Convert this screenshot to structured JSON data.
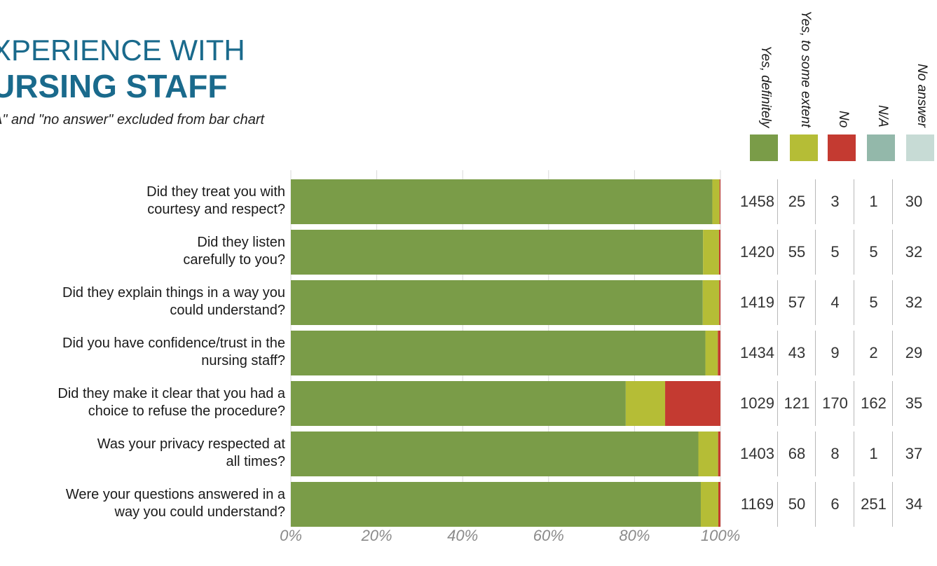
{
  "title_line1": "XPERIENCE WITH",
  "title_line2": "URSING STAFF",
  "subtitle": "A\" and \"no answer\" excluded from bar chart",
  "colors": {
    "yes_definitely": "#7a9c48",
    "yes_some": "#b5bd36",
    "no": "#c43a31",
    "na": "#93b8aa",
    "no_answer": "#c7dbd5",
    "title": "#1a6a8c"
  },
  "legend": [
    {
      "label": "Yes, definitely",
      "color": "#7a9c48"
    },
    {
      "label": "Yes, to some extent",
      "color": "#b5bd36"
    },
    {
      "label": "No",
      "color": "#c43a31"
    },
    {
      "label": "N/A",
      "color": "#93b8aa"
    },
    {
      "label": "No answer",
      "color": "#c7dbd5"
    }
  ],
  "chart_data": {
    "type": "bar",
    "orientation": "horizontal",
    "stacked": "percent",
    "categories": [
      "Did they treat you with courtesy and respect?",
      "Did they listen carefully to you?",
      "Did they explain things in a way you could understand?",
      "Did you have confidence/trust in the nursing staff?",
      "Did they make it clear that you had a choice to refuse the procedure?",
      "Was your privacy respected at all times?",
      "Were your questions answered in a way you could understand?"
    ],
    "category_lines": [
      [
        "Did they treat you with",
        "courtesy and respect?"
      ],
      [
        "Did they listen",
        "carefully to you?"
      ],
      [
        "Did they explain things in a way you",
        "could understand?"
      ],
      [
        "Did you have confidence/trust in the",
        "nursing staff?"
      ],
      [
        "Did they make it clear that you had a",
        "choice to refuse the procedure?"
      ],
      [
        "Was your privacy respected at",
        "all times?"
      ],
      [
        "Were your questions answered in a",
        "way you could understand?"
      ]
    ],
    "series": [
      {
        "name": "Yes, definitely",
        "values": [
          1458,
          1420,
          1419,
          1434,
          1029,
          1403,
          1169
        ]
      },
      {
        "name": "Yes, to some extent",
        "values": [
          25,
          55,
          57,
          43,
          121,
          68,
          50
        ]
      },
      {
        "name": "No",
        "values": [
          3,
          5,
          4,
          9,
          170,
          8,
          6
        ]
      },
      {
        "name": "N/A",
        "values": [
          1,
          5,
          5,
          2,
          162,
          1,
          251
        ]
      },
      {
        "name": "No answer",
        "values": [
          30,
          32,
          32,
          29,
          35,
          37,
          34
        ]
      }
    ],
    "bar_series": [
      "Yes, definitely",
      "Yes, to some extent",
      "No"
    ],
    "xticks": [
      "0%",
      "20%",
      "40%",
      "60%",
      "80%",
      "100%"
    ],
    "xlim": [
      0,
      100
    ],
    "grid": true
  }
}
